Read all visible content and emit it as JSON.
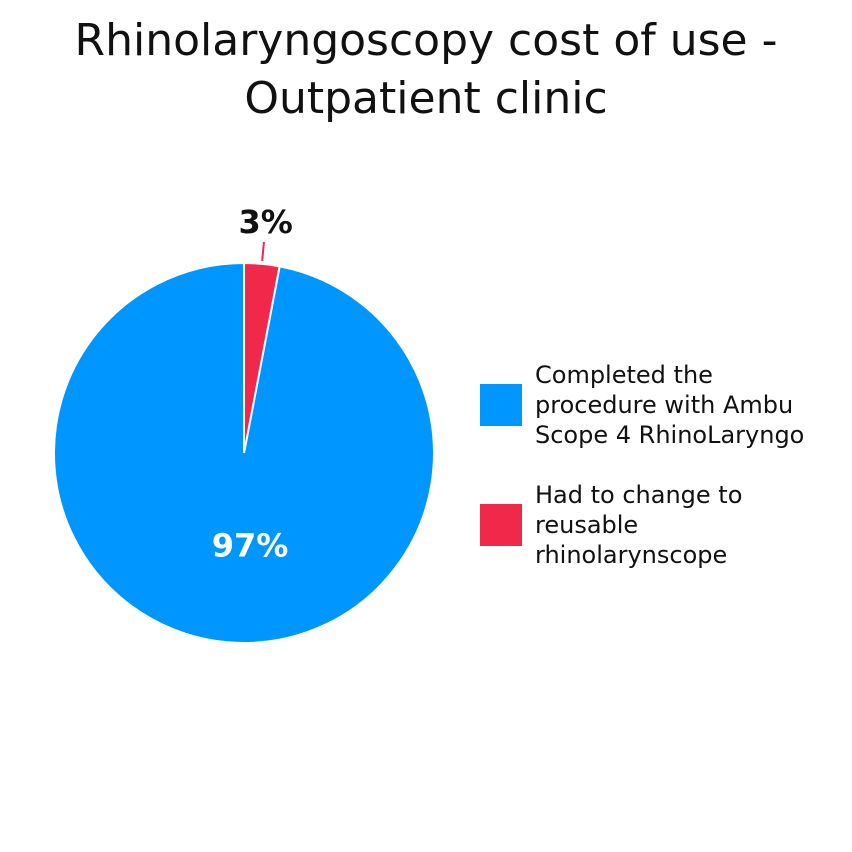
{
  "chart_data": {
    "type": "pie",
    "title": "Rhinolaryngoscopy cost of use - Outpatient clinic",
    "categories": [
      "Completed the procedure with Ambu Scope 4 RhinoLaryngo",
      "Had to change to reusable rhinolarynscope"
    ],
    "values": [
      97,
      3
    ],
    "value_labels": [
      "97%",
      "3%"
    ],
    "colors": [
      "#0096ff",
      "#f0284a"
    ],
    "legend": "right"
  }
}
